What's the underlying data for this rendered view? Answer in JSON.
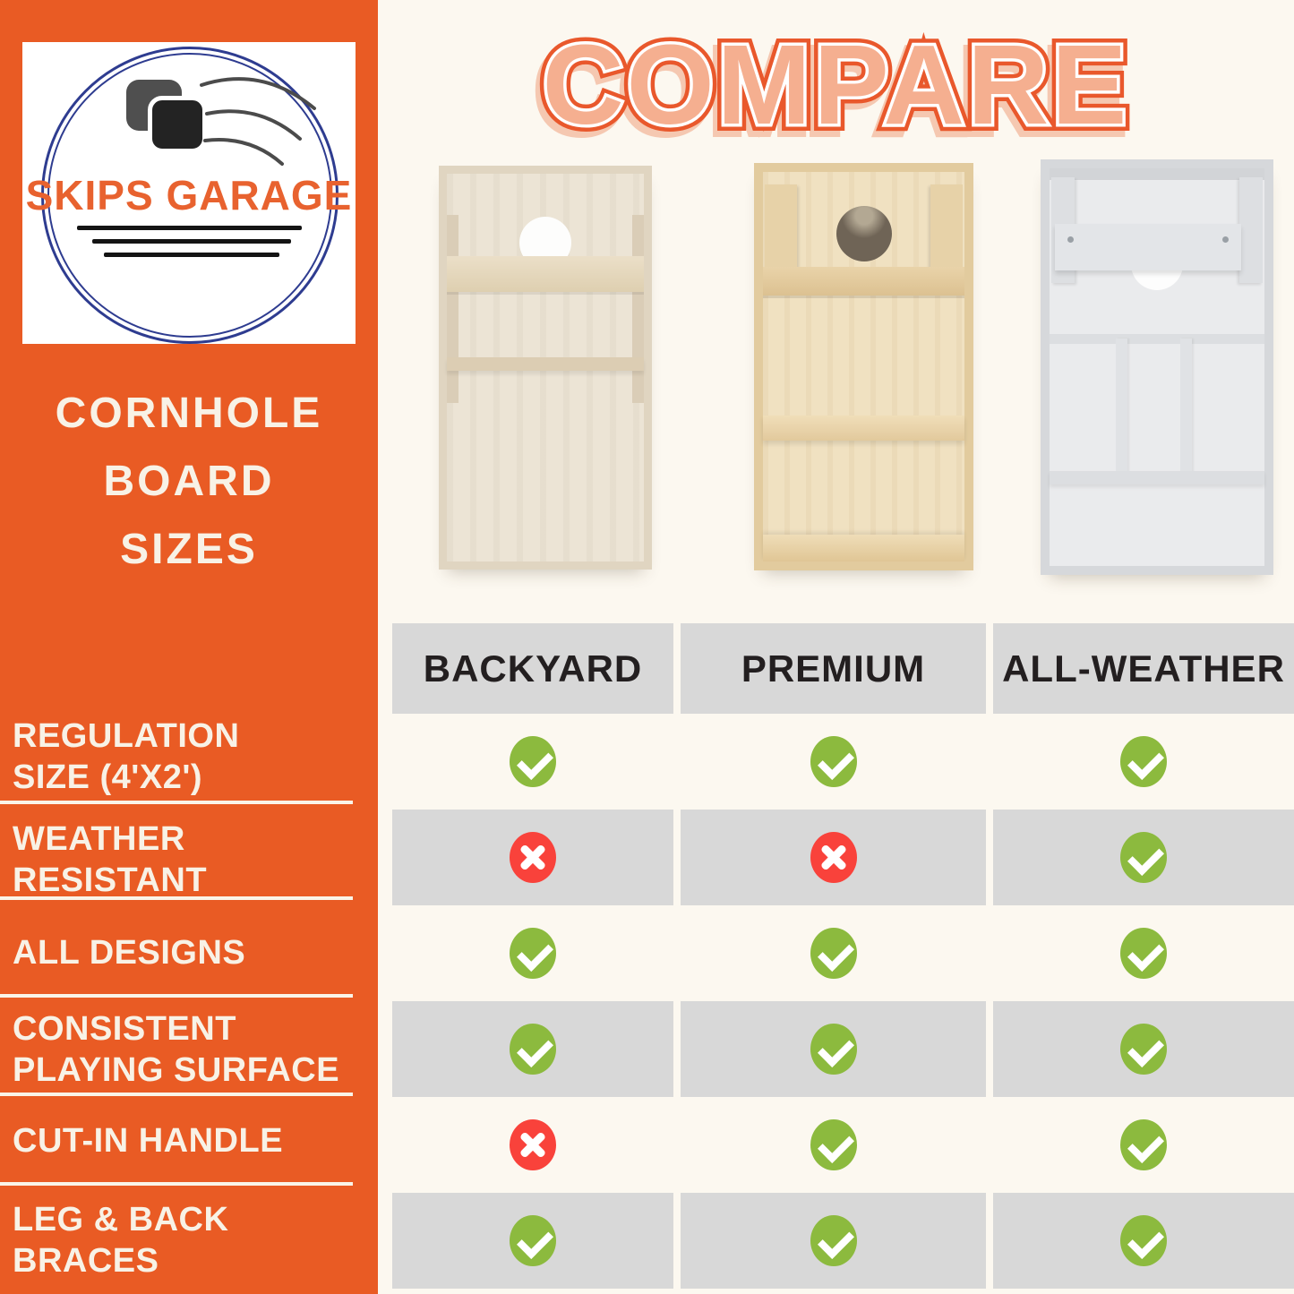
{
  "logo": {
    "brand": "SKIPS GARAGE",
    "icon": "tossed-bean-bags-icon"
  },
  "sidebar": {
    "title_lines": [
      "CORNHOLE",
      "BOARD",
      "SIZES"
    ],
    "features": [
      {
        "id": "regulation-size",
        "lines": [
          "REGULATION",
          "SIZE (4'X2')"
        ]
      },
      {
        "id": "weather-resistant",
        "lines": [
          "WEATHER",
          "RESISTANT"
        ]
      },
      {
        "id": "all-designs",
        "lines": [
          "ALL DESIGNS"
        ]
      },
      {
        "id": "consistent-playing-surface",
        "lines": [
          "CONSISTENT",
          "PLAYING SURFACE"
        ]
      },
      {
        "id": "cut-in-handle",
        "lines": [
          "CUT-IN HANDLE"
        ]
      },
      {
        "id": "leg-back-braces",
        "lines": [
          "LEG & BACK",
          "BRACES"
        ]
      }
    ]
  },
  "main": {
    "title": "COMPARE",
    "board_photos": [
      "backyard-board-back-view",
      "premium-board-back-view",
      "all-weather-board-back-view"
    ]
  },
  "table": {
    "columns": [
      "BACKYARD",
      "PREMIUM",
      "ALL-WEATHER"
    ],
    "rows": [
      {
        "feature": "REGULATION SIZE (4'X2')",
        "values": [
          "check",
          "check",
          "check"
        ]
      },
      {
        "feature": "WEATHER RESISTANT",
        "values": [
          "cross",
          "cross",
          "check"
        ]
      },
      {
        "feature": "ALL DESIGNS",
        "values": [
          "check",
          "check",
          "check"
        ]
      },
      {
        "feature": "CONSISTENT PLAYING SURFACE",
        "values": [
          "check",
          "check",
          "check"
        ]
      },
      {
        "feature": "CUT-IN HANDLE",
        "values": [
          "cross",
          "check",
          "check"
        ]
      },
      {
        "feature": "LEG & BACK BRACES",
        "values": [
          "check",
          "check",
          "check"
        ]
      }
    ]
  },
  "colors": {
    "sidebar_orange": "#E95B24",
    "background_cream": "#FCF8F0",
    "band_gray": "#D8D8D8",
    "check_green": "#8CBA3E",
    "cross_red": "#F9423B",
    "logo_navy": "#2E3C90",
    "logo_orange": "#E8622F",
    "title_fill": "#F5AF90",
    "title_stroke": "#E9582C"
  }
}
